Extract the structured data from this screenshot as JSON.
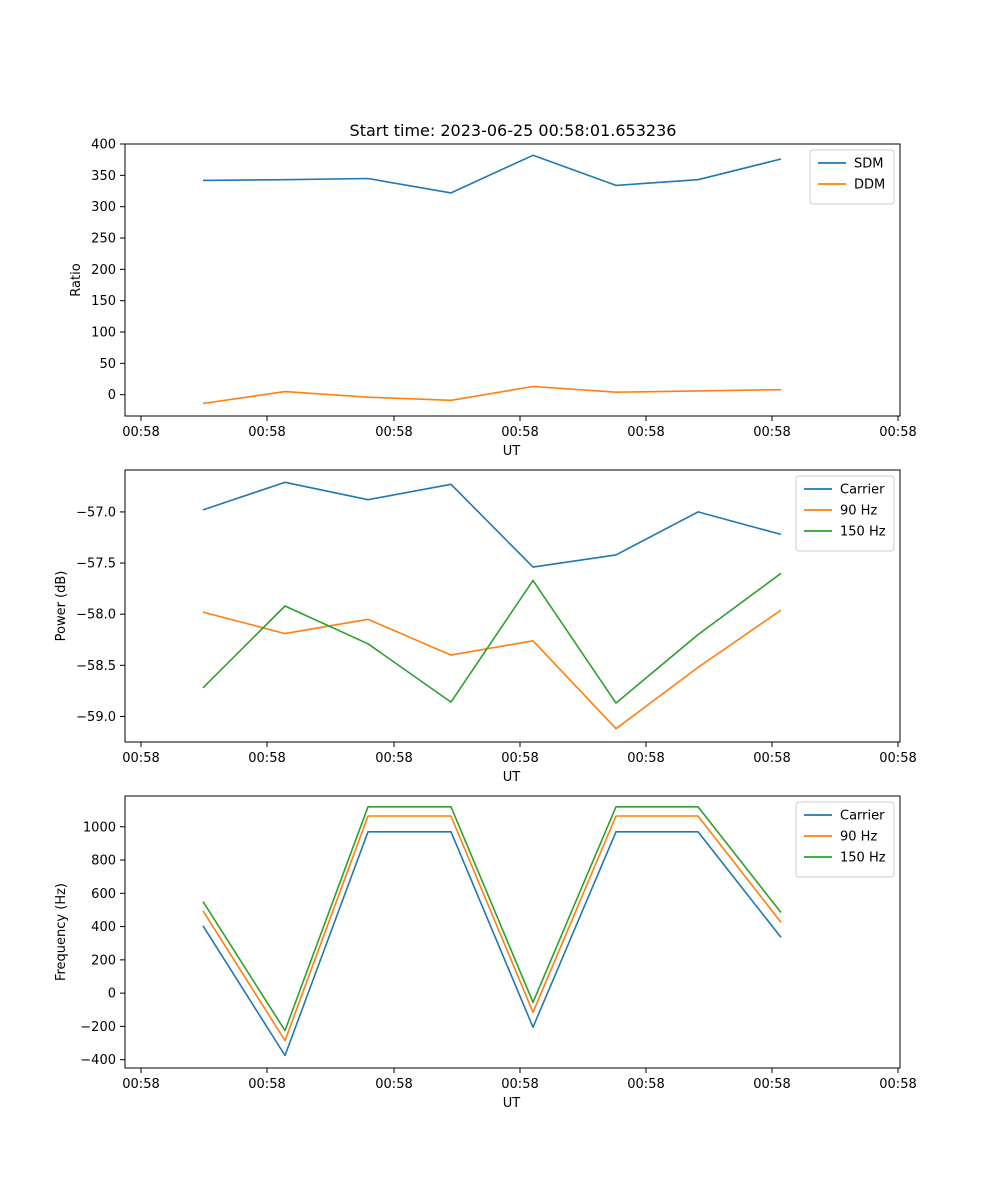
{
  "figure_title": "Start time: 2023-06-25 00:58:01.653236",
  "chart_data": [
    {
      "type": "line",
      "title": "Start time: 2023-06-25 00:58:01.653236",
      "xlabel": "UT",
      "ylabel": "Ratio",
      "x_tick_labels": [
        "00:58",
        "00:58",
        "00:58",
        "00:58",
        "00:58",
        "00:58",
        "00:58"
      ],
      "y_ticks": [
        0,
        50,
        100,
        150,
        200,
        250,
        300,
        350,
        400
      ],
      "ylim": [
        -34,
        400
      ],
      "grid": false,
      "legend": "top-right",
      "series": [
        {
          "name": "SDM",
          "color": "#1f77b4",
          "values": [
            342,
            343,
            345,
            322,
            382,
            334,
            343,
            376
          ]
        },
        {
          "name": "DDM",
          "color": "#ff7f0e",
          "values": [
            -14,
            5,
            -4,
            -9,
            13,
            4,
            6,
            8
          ]
        }
      ]
    },
    {
      "type": "line",
      "title": "",
      "xlabel": "UT",
      "ylabel": "Power (dB)",
      "x_tick_labels": [
        "00:58",
        "00:58",
        "00:58",
        "00:58",
        "00:58",
        "00:58",
        "00:58"
      ],
      "y_ticks": [
        -59.0,
        -58.5,
        -58.0,
        -57.5,
        -57.0
      ],
      "y_tick_labels": [
        "−59.0",
        "−58.5",
        "−58.0",
        "−57.5",
        "−57.0"
      ],
      "ylim": [
        -59.25,
        -56.59
      ],
      "grid": false,
      "legend": "top-right",
      "series": [
        {
          "name": "Carrier",
          "color": "#1f77b4",
          "values": [
            -56.98,
            -56.71,
            -56.88,
            -56.73,
            -57.54,
            -57.42,
            -57.0,
            -57.22
          ]
        },
        {
          "name": "90 Hz",
          "color": "#ff7f0e",
          "values": [
            -57.98,
            -58.19,
            -58.05,
            -58.4,
            -58.26,
            -59.12,
            -58.52,
            -57.96
          ]
        },
        {
          "name": "150 Hz",
          "color": "#2ca02c",
          "values": [
            -58.72,
            -57.92,
            -58.29,
            -58.86,
            -57.67,
            -58.87,
            -58.2,
            -57.6
          ]
        }
      ]
    },
    {
      "type": "line",
      "title": "",
      "xlabel": "UT",
      "ylabel": "Frequency (Hz)",
      "x_tick_labels": [
        "00:58",
        "00:58",
        "00:58",
        "00:58",
        "00:58",
        "00:58",
        "00:58"
      ],
      "y_ticks": [
        -400,
        -200,
        0,
        200,
        400,
        600,
        800,
        1000
      ],
      "y_tick_labels": [
        "−400",
        "−200",
        "0",
        "200",
        "400",
        "600",
        "800",
        "1000"
      ],
      "ylim": [
        -450,
        1185
      ],
      "grid": false,
      "legend": "top-right",
      "series": [
        {
          "name": "Carrier",
          "color": "#1f77b4",
          "values": [
            405,
            -375,
            970,
            970,
            -205,
            970,
            970,
            335
          ]
        },
        {
          "name": "90 Hz",
          "color": "#ff7f0e",
          "values": [
            495,
            -285,
            1065,
            1065,
            -115,
            1065,
            1065,
            425
          ]
        },
        {
          "name": "150 Hz",
          "color": "#2ca02c",
          "values": [
            550,
            -225,
            1120,
            1120,
            -55,
            1120,
            1120,
            485
          ]
        }
      ]
    }
  ]
}
